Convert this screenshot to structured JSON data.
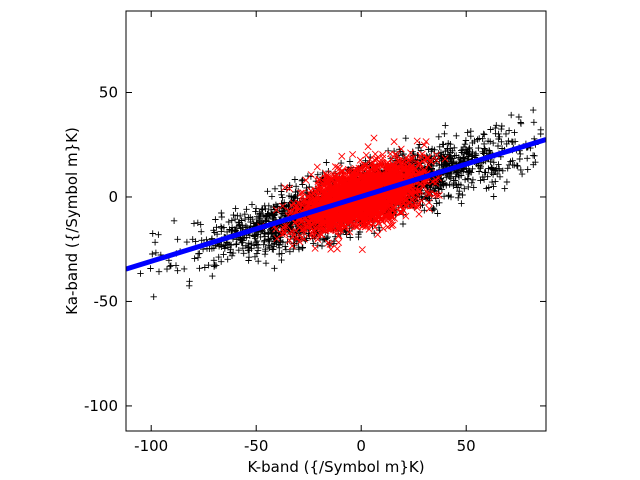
{
  "chart_data": {
    "type": "scatter",
    "xlabel": "K-band ({/Symbol m}K)",
    "ylabel": "Ka-band ({/Symbol m}K)",
    "xlim": [
      -112,
      88
    ],
    "ylim": [
      -112,
      89
    ],
    "xticks": [
      -100,
      -50,
      0,
      50
    ],
    "yticks": [
      -100,
      -50,
      0,
      50
    ],
    "xtick_labels": [
      "-100",
      "-50",
      "0",
      "50"
    ],
    "ytick_labels": [
      "-100",
      "-50",
      "0",
      "50"
    ],
    "grid": false,
    "legend": "none",
    "series": [
      {
        "marker": "plus",
        "color": "#000000",
        "distribution": {
          "n": 2600,
          "x_center": 0,
          "x_sd": 35,
          "x_range": [
            -108,
            86
          ],
          "slope": 0.31,
          "intercept": 0,
          "residual_sd": 7,
          "seed": 7
        }
      },
      {
        "marker": "cross",
        "color": "#ff0000",
        "distribution": {
          "n": 2600,
          "x_center": 0,
          "x_sd": 14,
          "x_range": [
            -65,
            40
          ],
          "slope": 0.3,
          "intercept": 0,
          "residual_sd": 6.5,
          "seed": 13
        }
      },
      {
        "type": "line",
        "color": "#0000ff",
        "x": [
          -112,
          88
        ],
        "y": [
          -34.5,
          27.5
        ]
      }
    ]
  }
}
